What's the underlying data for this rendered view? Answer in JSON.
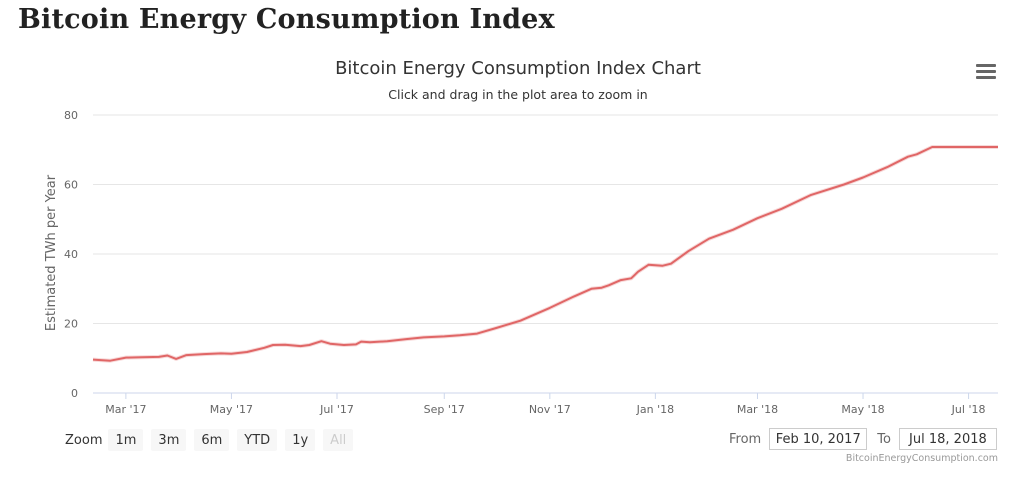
{
  "page": {
    "heading": "Bitcoin Energy Consumption Index"
  },
  "chart": {
    "title": "Bitcoin Energy Consumption Index Chart",
    "subtitle": "Click and drag in the plot area to zoom in",
    "menu_icon": "hamburger-menu-icon",
    "credit": "BitcoinEnergyConsumption.com"
  },
  "zoom": {
    "label": "Zoom",
    "buttons": [
      {
        "label": "1m",
        "enabled": true
      },
      {
        "label": "3m",
        "enabled": true
      },
      {
        "label": "6m",
        "enabled": true
      },
      {
        "label": "YTD",
        "enabled": true
      },
      {
        "label": "1y",
        "enabled": true
      },
      {
        "label": "All",
        "enabled": false
      }
    ]
  },
  "range": {
    "from_label": "From",
    "from_value": "Feb 10, 2017",
    "to_label": "To",
    "to_value": "Jul 18, 2018"
  },
  "chart_data": {
    "type": "line",
    "title": "Bitcoin Energy Consumption Index Chart",
    "subtitle": "Click and drag in the plot area to zoom in",
    "xlabel": "",
    "ylabel": "Estimated TWh per Year",
    "ylim": [
      0,
      80
    ],
    "yticks": [
      0,
      20,
      40,
      60,
      80
    ],
    "xlim": [
      "2017-02-10",
      "2018-07-18"
    ],
    "xticks": [
      {
        "label": "Mar '17",
        "date": "2017-03-01"
      },
      {
        "label": "May '17",
        "date": "2017-05-01"
      },
      {
        "label": "Jul '17",
        "date": "2017-07-01"
      },
      {
        "label": "Sep '17",
        "date": "2017-09-01"
      },
      {
        "label": "Nov '17",
        "date": "2017-11-01"
      },
      {
        "label": "Jan '18",
        "date": "2018-01-01"
      },
      {
        "label": "Mar '18",
        "date": "2018-03-01"
      },
      {
        "label": "May '18",
        "date": "2018-05-01"
      },
      {
        "label": "Jul '18",
        "date": "2018-07-01"
      }
    ],
    "grid": true,
    "line_color": "#e06666",
    "series": [
      {
        "points": [
          [
            "2017-02-10",
            9.6
          ],
          [
            "2017-02-20",
            9.3
          ],
          [
            "2017-03-01",
            10.2
          ],
          [
            "2017-03-10",
            10.3
          ],
          [
            "2017-03-20",
            10.4
          ],
          [
            "2017-03-25",
            10.8
          ],
          [
            "2017-03-30",
            9.8
          ],
          [
            "2017-04-05",
            10.9
          ],
          [
            "2017-04-15",
            11.2
          ],
          [
            "2017-04-25",
            11.4
          ],
          [
            "2017-05-01",
            11.3
          ],
          [
            "2017-05-10",
            11.8
          ],
          [
            "2017-05-20",
            13.0
          ],
          [
            "2017-05-25",
            13.8
          ],
          [
            "2017-06-01",
            13.9
          ],
          [
            "2017-06-10",
            13.5
          ],
          [
            "2017-06-15",
            13.8
          ],
          [
            "2017-06-22",
            14.9
          ],
          [
            "2017-06-27",
            14.2
          ],
          [
            "2017-07-01",
            14.0
          ],
          [
            "2017-07-05",
            13.8
          ],
          [
            "2017-07-12",
            14.0
          ],
          [
            "2017-07-15",
            14.8
          ],
          [
            "2017-07-20",
            14.6
          ],
          [
            "2017-07-30",
            14.9
          ],
          [
            "2017-08-10",
            15.5
          ],
          [
            "2017-08-20",
            16.0
          ],
          [
            "2017-09-01",
            16.3
          ],
          [
            "2017-09-10",
            16.6
          ],
          [
            "2017-09-20",
            17.1
          ],
          [
            "2017-10-01",
            18.7
          ],
          [
            "2017-10-15",
            20.8
          ],
          [
            "2017-11-01",
            24.5
          ],
          [
            "2017-11-15",
            27.8
          ],
          [
            "2017-11-25",
            30.0
          ],
          [
            "2017-12-01",
            30.3
          ],
          [
            "2017-12-05",
            31.0
          ],
          [
            "2017-12-12",
            32.5
          ],
          [
            "2017-12-18",
            33.0
          ],
          [
            "2017-12-22",
            34.9
          ],
          [
            "2017-12-28",
            36.9
          ],
          [
            "2018-01-05",
            36.6
          ],
          [
            "2018-01-10",
            37.2
          ],
          [
            "2018-01-20",
            40.8
          ],
          [
            "2018-02-01",
            44.4
          ],
          [
            "2018-02-15",
            47.0
          ],
          [
            "2018-03-01",
            50.3
          ],
          [
            "2018-03-15",
            53.0
          ],
          [
            "2018-04-01",
            57.0
          ],
          [
            "2018-04-20",
            60.0
          ],
          [
            "2018-05-01",
            62.0
          ],
          [
            "2018-05-15",
            65.0
          ],
          [
            "2018-05-27",
            68.0
          ],
          [
            "2018-06-01",
            68.7
          ],
          [
            "2018-06-10",
            70.8
          ],
          [
            "2018-06-20",
            70.8
          ],
          [
            "2018-07-18",
            70.8
          ]
        ]
      }
    ]
  }
}
